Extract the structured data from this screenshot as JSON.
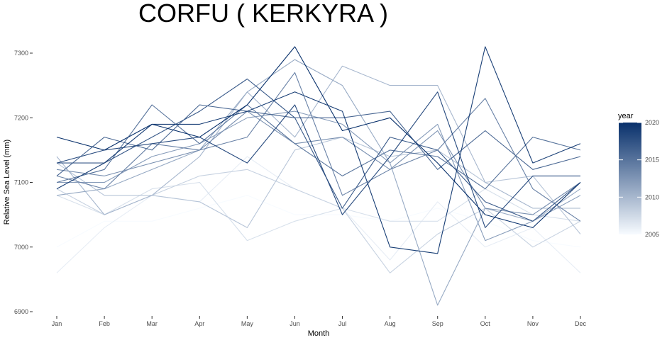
{
  "chart_data": {
    "type": "line",
    "title": "CORFU ( KERKYRA )",
    "xlabel": "Month",
    "ylabel": "Relative Sea Level (mm)",
    "categories": [
      "Jan",
      "Feb",
      "Mar",
      "Apr",
      "May",
      "Jun",
      "Jul",
      "Aug",
      "Sep",
      "Oct",
      "Nov",
      "Dec"
    ],
    "ylim": [
      6890,
      7320
    ],
    "yticks": [
      6900,
      7000,
      7100,
      7200,
      7300
    ],
    "legend": {
      "title": "year",
      "position": "right",
      "min": 2005,
      "max": 2020,
      "ticks": [
        2005,
        2010,
        2015,
        2020
      ],
      "color_low": "#f7fbff",
      "color_high": "#08306b"
    },
    "grid": false,
    "series": [
      {
        "year": 2005,
        "values": [
          7000,
          7040,
          7040,
          7060,
          7080,
          7050,
          7050,
          7040,
          7060,
          7040,
          7010,
          7000
        ]
      },
      {
        "year": 2006,
        "values": [
          6960,
          7030,
          7080,
          7070,
          7140,
          7090,
          7060,
          6980,
          7070,
          7000,
          7030,
          6960
        ]
      },
      {
        "year": 2007,
        "values": [
          7080,
          7050,
          7090,
          7100,
          7010,
          7040,
          7060,
          7040,
          7040,
          7090,
          7050,
          7040
        ]
      },
      {
        "year": 2008,
        "values": [
          7090,
          7050,
          7080,
          7110,
          7120,
          7090,
          7060,
          6960,
          7020,
          7060,
          7000,
          7040
        ]
      },
      {
        "year": 2009,
        "values": [
          7130,
          7080,
          7080,
          7070,
          7030,
          7150,
          7170,
          7140,
          7150,
          7100,
          7110,
          7020
        ]
      },
      {
        "year": 2010,
        "values": [
          7140,
          7050,
          7080,
          7140,
          7240,
          7170,
          7280,
          7250,
          7250,
          7100,
          7060,
          7060
        ]
      },
      {
        "year": 2011,
        "values": [
          7080,
          7090,
          7120,
          7150,
          7240,
          7290,
          7250,
          7130,
          6910,
          7060,
          7040,
          7090
        ]
      },
      {
        "year": 2012,
        "values": [
          7100,
          7100,
          7140,
          7160,
          7200,
          7210,
          7190,
          7130,
          7190,
          7010,
          7040,
          7080
        ]
      },
      {
        "year": 2013,
        "values": [
          7120,
          7110,
          7130,
          7150,
          7210,
          7160,
          7170,
          7120,
          7180,
          7060,
          7050,
          7100
        ]
      },
      {
        "year": 2014,
        "values": [
          7110,
          7090,
          7160,
          7150,
          7170,
          7270,
          7080,
          7120,
          7150,
          7230,
          7090,
          7040
        ]
      },
      {
        "year": 2015,
        "values": [
          7100,
          7120,
          7220,
          7160,
          7220,
          7160,
          7110,
          7150,
          7140,
          7090,
          7170,
          7150
        ]
      },
      {
        "year": 2016,
        "values": [
          7110,
          7170,
          7150,
          7220,
          7210,
          7200,
          7200,
          7210,
          7120,
          7180,
          7120,
          7140
        ]
      },
      {
        "year": 2017,
        "values": [
          7130,
          7130,
          7170,
          7210,
          7260,
          7200,
          7060,
          7170,
          7150,
          7070,
          7040,
          7100
        ]
      },
      {
        "year": 2018,
        "values": [
          7130,
          7150,
          7160,
          7170,
          7130,
          7220,
          7050,
          7140,
          7240,
          7030,
          7110,
          7110
        ]
      },
      {
        "year": 2019,
        "values": [
          7090,
          7130,
          7190,
          7190,
          7210,
          7240,
          7210,
          7000,
          6990,
          7310,
          7130,
          7160
        ]
      },
      {
        "year": 2020,
        "values": [
          7170,
          7150,
          7190,
          7170,
          7220,
          7310,
          7180,
          7200,
          7130,
          7050,
          7030,
          7100
        ]
      }
    ]
  }
}
